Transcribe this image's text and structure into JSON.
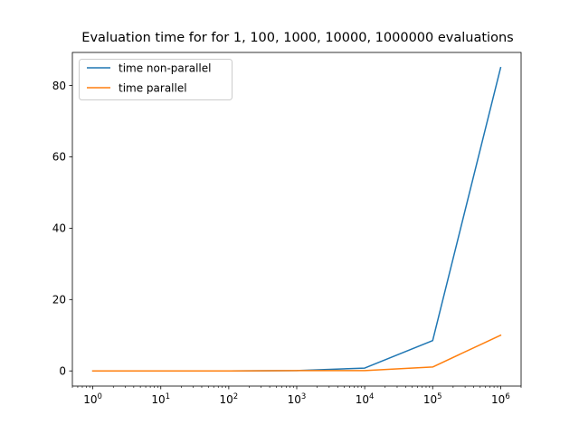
{
  "chart_data": {
    "type": "line",
    "title": "Evaluation time for  for 1, 100, 1000, 10000, 1000000 evaluations",
    "xlabel": "",
    "ylabel": "",
    "xscale": "log",
    "xlim": [
      0.5,
      2000000
    ],
    "ylim": [
      -4.25,
      89.25
    ],
    "x": [
      1,
      10,
      100,
      1000,
      10000,
      100000,
      1000000
    ],
    "xticks": [
      1,
      10,
      100,
      1000,
      10000,
      100000,
      1000000
    ],
    "xtick_labels": [
      {
        "base": "10",
        "exp": "0"
      },
      {
        "base": "10",
        "exp": "1"
      },
      {
        "base": "10",
        "exp": "2"
      },
      {
        "base": "10",
        "exp": "3"
      },
      {
        "base": "10",
        "exp": "4"
      },
      {
        "base": "10",
        "exp": "5"
      },
      {
        "base": "10",
        "exp": "6"
      }
    ],
    "yticks": [
      0,
      20,
      40,
      60,
      80
    ],
    "ytick_labels": [
      "0",
      "20",
      "40",
      "60",
      "80"
    ],
    "grid": false,
    "legend_position": "top-left",
    "series": [
      {
        "name": "time non-parallel",
        "color": "#1f77b4",
        "values": [
          0.0,
          0.0,
          0.0,
          0.1,
          0.8,
          8.5,
          85.0
        ]
      },
      {
        "name": "time parallel",
        "color": "#ff7f0e",
        "values": [
          0.0,
          0.0,
          0.0,
          0.1,
          0.1,
          1.1,
          10.0
        ]
      }
    ]
  }
}
